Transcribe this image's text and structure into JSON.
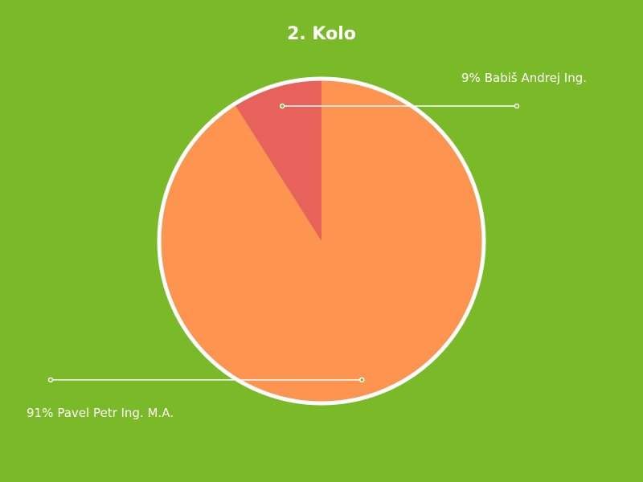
{
  "chart_data": {
    "type": "pie",
    "title": "2. Kolo",
    "categories": [
      "Pavel Petr Ing. M.A.",
      "Babiš Andrej Ing."
    ],
    "values": [
      91,
      9
    ],
    "value_labels": [
      "91%",
      "9%"
    ],
    "colors": [
      "#fd9550",
      "#e6625b"
    ]
  }
}
